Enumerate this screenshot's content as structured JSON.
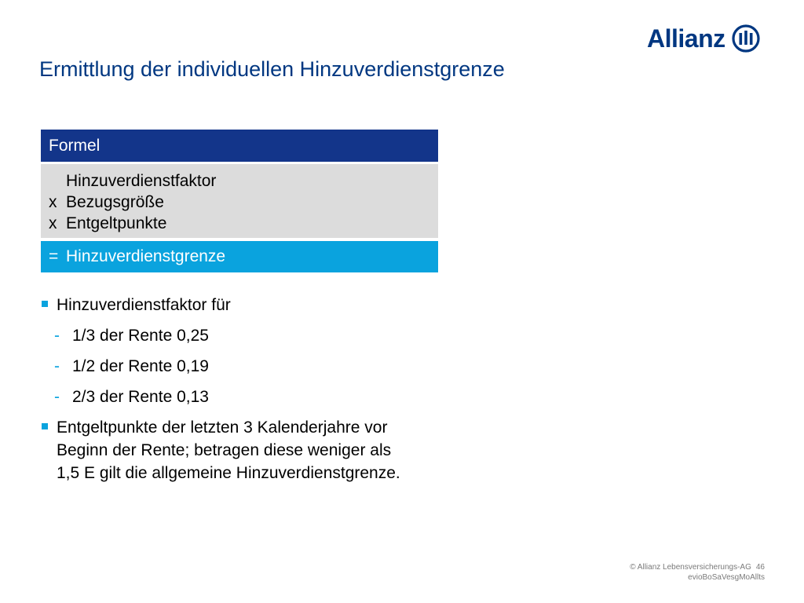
{
  "brand": {
    "name": "Allianz",
    "color": "#003781",
    "accent": "#0aa3de"
  },
  "title": "Ermittlung der individuellen Hinzuverdienstgrenze",
  "formula": {
    "header": "Formel",
    "lines": [
      {
        "op": "",
        "text": "Hinzuverdienstfaktor"
      },
      {
        "op": "x",
        "text": "Bezugsgröße"
      },
      {
        "op": "x",
        "text": "Entgeltpunkte"
      }
    ],
    "result_op": "=",
    "result": "Hinzuverdienstgrenze"
  },
  "bullets": {
    "first": "Hinzuverdienstfaktor für",
    "sub": [
      "1/3 der Rente 0,25",
      "1/2 der Rente 0,19",
      "2/3 der Rente 0,13"
    ],
    "second_lines": [
      "Entgeltpunkte der letzten 3 Kalenderjahre vor",
      "Beginn der Rente; betragen diese weniger als",
      "1,5 E gilt die allgemeine Hinzuverdienstgrenze."
    ]
  },
  "footer": {
    "line1": "© Allianz Lebensversicherungs-AG",
    "page": "46",
    "line2": "evioBoSaVesgMoAllts"
  }
}
